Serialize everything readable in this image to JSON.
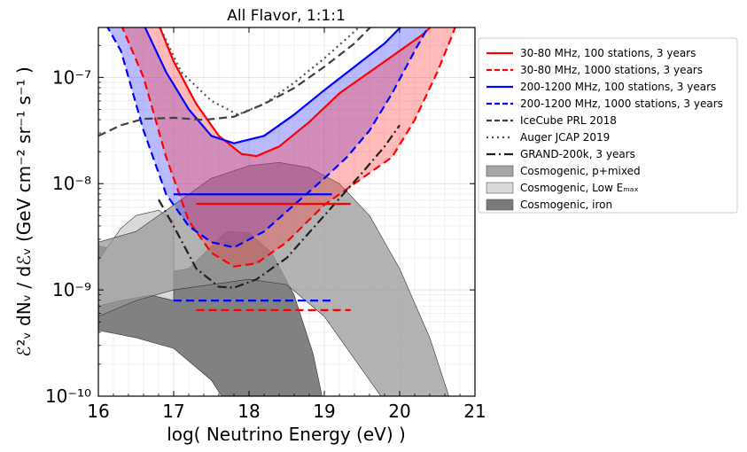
{
  "chart_data": {
    "type": "line",
    "title": "All Flavor, 1:1:1",
    "xlabel": "log( Neutrino Energy (eV) )",
    "ylabel": "ℰ²ᵥ dNᵥ / dℰᵥ (GeV cm⁻² sr⁻¹ s⁻¹ )",
    "xlim": [
      16,
      21
    ],
    "ylim_log10": [
      -10,
      -6.53
    ],
    "x_ticks": [
      16,
      17,
      18,
      19,
      20,
      21
    ],
    "x_tick_labels": [
      "16",
      "17",
      "18",
      "19",
      "20",
      "21"
    ],
    "y_ticks_log10": [
      -10,
      -9,
      -8,
      -7
    ],
    "y_tick_labels": [
      "10⁻¹⁰",
      "10⁻⁹",
      "10⁻⁸",
      "10⁻⁷"
    ],
    "grid": true,
    "legend_position": "outside-right",
    "bands": [
      {
        "name": "Cosmogenic, iron",
        "color": "#7a7a7a",
        "opacity": 0.95,
        "lower": [
          [
            16.0,
            -9.38
          ],
          [
            16.5,
            -9.45
          ],
          [
            17.0,
            -9.55
          ],
          [
            17.5,
            -9.85
          ],
          [
            18.0,
            -10.4
          ],
          [
            18.2,
            -10.6
          ]
        ],
        "upper": [
          [
            16.0,
            -8.58
          ],
          [
            16.4,
            -8.66
          ],
          [
            16.8,
            -8.85
          ],
          [
            17.2,
            -8.8
          ],
          [
            17.7,
            -8.45
          ],
          [
            18.0,
            -8.46
          ],
          [
            18.3,
            -8.65
          ],
          [
            18.6,
            -9.05
          ],
          [
            18.85,
            -9.6
          ],
          [
            19.0,
            -10.1
          ],
          [
            19.05,
            -10.6
          ]
        ]
      },
      {
        "name": "Cosmogenic, Low E_max",
        "color": "#d9d9d9",
        "opacity": 1.0,
        "lower": [
          [
            16.0,
            -9.15
          ],
          [
            16.3,
            -9.1
          ],
          [
            16.7,
            -9.05
          ],
          [
            17.0,
            -9.1
          ]
        ],
        "upper": [
          [
            16.0,
            -8.72
          ],
          [
            16.3,
            -8.42
          ],
          [
            16.5,
            -8.3
          ],
          [
            16.8,
            -8.25
          ],
          [
            17.0,
            -8.35
          ]
        ]
      },
      {
        "name": "Cosmogenic, p+mixed",
        "color": "#9a9a9a",
        "opacity": 0.75,
        "lower": [
          [
            16.0,
            -9.25
          ],
          [
            16.5,
            -9.1
          ],
          [
            17.0,
            -9.0
          ],
          [
            17.5,
            -8.95
          ],
          [
            18.0,
            -8.9
          ],
          [
            18.5,
            -8.95
          ],
          [
            19.0,
            -9.25
          ],
          [
            19.5,
            -9.75
          ],
          [
            20.0,
            -10.25
          ],
          [
            20.5,
            -10.6
          ]
        ],
        "upper": [
          [
            16.0,
            -8.55
          ],
          [
            16.5,
            -8.45
          ],
          [
            17.0,
            -8.2
          ],
          [
            17.5,
            -7.95
          ],
          [
            18.0,
            -7.83
          ],
          [
            18.4,
            -7.8
          ],
          [
            18.8,
            -7.85
          ],
          [
            19.2,
            -8.0
          ],
          [
            19.6,
            -8.3
          ],
          [
            20.0,
            -8.8
          ],
          [
            20.4,
            -9.45
          ],
          [
            20.7,
            -10.1
          ],
          [
            20.85,
            -10.6
          ]
        ]
      }
    ],
    "fills": [
      {
        "name": "200-1200 MHz band",
        "color": "#3a3aff",
        "opacity": 0.35,
        "between": [
          "200-1200 MHz, 100 stations, 3 years",
          "200-1200 MHz, 1000 stations, 3 years"
        ]
      },
      {
        "name": "30-80 MHz band",
        "color": "#ff3a3a",
        "opacity": 0.35,
        "between": [
          "30-80 MHz, 100 stations, 3 years",
          "30-80 MHz, 1000 stations, 3 years"
        ]
      }
    ],
    "series": [
      {
        "name": "30-80 MHz, 100 stations, 3 years",
        "color": "#ff0000",
        "style": "solid",
        "width": 2.2,
        "points": [
          [
            16.8,
            -6.5
          ],
          [
            17.0,
            -6.85
          ],
          [
            17.3,
            -7.25
          ],
          [
            17.6,
            -7.55
          ],
          [
            17.9,
            -7.72
          ],
          [
            18.1,
            -7.74
          ],
          [
            18.4,
            -7.65
          ],
          [
            18.8,
            -7.42
          ],
          [
            19.2,
            -7.15
          ],
          [
            19.6,
            -6.95
          ],
          [
            20.0,
            -6.75
          ],
          [
            20.3,
            -6.6
          ],
          [
            20.45,
            -6.5
          ]
        ]
      },
      {
        "name": "30-80 MHz, 1000 stations, 3 years",
        "color": "#ff0000",
        "style": "dashed",
        "width": 2.2,
        "points": [
          [
            16.3,
            -6.5
          ],
          [
            16.6,
            -7.0
          ],
          [
            16.9,
            -7.75
          ],
          [
            17.2,
            -8.35
          ],
          [
            17.5,
            -8.65
          ],
          [
            17.8,
            -8.78
          ],
          [
            18.1,
            -8.75
          ],
          [
            18.5,
            -8.55
          ],
          [
            19.0,
            -8.2
          ],
          [
            19.5,
            -7.95
          ],
          [
            19.9,
            -7.75
          ],
          [
            20.2,
            -7.4
          ],
          [
            20.5,
            -6.95
          ],
          [
            20.7,
            -6.6
          ],
          [
            20.75,
            -6.5
          ]
        ]
      },
      {
        "name": "200-1200 MHz, 100 stations, 3 years",
        "color": "#0000ff",
        "style": "solid",
        "width": 2.2,
        "points": [
          [
            16.6,
            -6.5
          ],
          [
            16.9,
            -6.95
          ],
          [
            17.2,
            -7.3
          ],
          [
            17.5,
            -7.55
          ],
          [
            17.8,
            -7.62
          ],
          [
            18.2,
            -7.55
          ],
          [
            18.6,
            -7.35
          ],
          [
            19.0,
            -7.12
          ],
          [
            19.4,
            -6.9
          ],
          [
            19.8,
            -6.68
          ],
          [
            20.05,
            -6.5
          ]
        ]
      },
      {
        "name": "200-1200 MHz, 1000 stations, 3 years",
        "color": "#0000ff",
        "style": "dashed",
        "width": 2.2,
        "points": [
          [
            16.1,
            -6.5
          ],
          [
            16.3,
            -6.75
          ],
          [
            16.6,
            -7.5
          ],
          [
            16.9,
            -8.1
          ],
          [
            17.2,
            -8.4
          ],
          [
            17.5,
            -8.55
          ],
          [
            17.8,
            -8.6
          ],
          [
            18.2,
            -8.45
          ],
          [
            18.6,
            -8.2
          ],
          [
            19.0,
            -7.95
          ],
          [
            19.3,
            -7.75
          ],
          [
            19.6,
            -7.5
          ],
          [
            19.9,
            -7.15
          ],
          [
            20.2,
            -6.75
          ],
          [
            20.4,
            -6.5
          ]
        ]
      },
      {
        "name": "IceCube PRL 2018",
        "color": "#404040",
        "style": "dashed",
        "width": 2.2,
        "points": [
          [
            16.0,
            -7.55
          ],
          [
            16.3,
            -7.45
          ],
          [
            16.6,
            -7.39
          ],
          [
            17.0,
            -7.38
          ],
          [
            17.4,
            -7.4
          ],
          [
            17.8,
            -7.37
          ],
          [
            18.2,
            -7.25
          ],
          [
            18.6,
            -7.1
          ],
          [
            19.0,
            -6.9
          ],
          [
            19.4,
            -6.68
          ],
          [
            19.65,
            -6.5
          ]
        ]
      },
      {
        "name": "Auger JCAP 2019",
        "color": "#505050",
        "style": "dotted",
        "width": 2.2,
        "points": [
          [
            16.8,
            -6.5
          ],
          [
            17.1,
            -6.95
          ],
          [
            17.5,
            -7.22
          ],
          [
            17.85,
            -7.35
          ],
          [
            18.2,
            -7.25
          ],
          [
            18.6,
            -7.05
          ],
          [
            19.0,
            -6.82
          ],
          [
            19.35,
            -6.6
          ],
          [
            19.5,
            -6.5
          ]
        ]
      },
      {
        "name": "GRAND-200k, 3 years",
        "color": "#202020",
        "style": "dashdot",
        "width": 2.2,
        "points": [
          [
            16.8,
            -8.15
          ],
          [
            17.0,
            -8.4
          ],
          [
            17.3,
            -8.8
          ],
          [
            17.6,
            -8.97
          ],
          [
            17.8,
            -8.98
          ],
          [
            18.1,
            -8.9
          ],
          [
            18.5,
            -8.7
          ],
          [
            19.0,
            -8.3
          ],
          [
            19.5,
            -7.9
          ],
          [
            19.8,
            -7.65
          ],
          [
            20.0,
            -7.45
          ]
        ]
      }
    ],
    "hlines": [
      {
        "name": "200-1200 MHz, 100 stations (average)",
        "color": "#0000ff",
        "style": "solid",
        "x": [
          17.0,
          19.1
        ],
        "y_log10": -8.1
      },
      {
        "name": "30-80 MHz, 100 stations (average)",
        "color": "#ff0000",
        "style": "solid",
        "x": [
          17.3,
          19.35
        ],
        "y_log10": -8.19
      },
      {
        "name": "200-1200 MHz, 1000 stations (average)",
        "color": "#0000ff",
        "style": "dashed",
        "x": [
          17.0,
          19.1
        ],
        "y_log10": -9.1
      },
      {
        "name": "30-80 MHz, 1000 stations (average)",
        "color": "#ff0000",
        "style": "dashed",
        "x": [
          17.3,
          19.35
        ],
        "y_log10": -9.19
      }
    ],
    "legend": [
      {
        "label": "30-80 MHz, 100 stations, 3 years",
        "kind": "line",
        "color": "#ff0000",
        "style": "solid"
      },
      {
        "label": "30-80 MHz, 1000 stations, 3 years",
        "kind": "line",
        "color": "#ff0000",
        "style": "dashed"
      },
      {
        "label": "200-1200 MHz, 100 stations, 3 years",
        "kind": "line",
        "color": "#0000ff",
        "style": "solid"
      },
      {
        "label": "200-1200 MHz, 1000 stations, 3 years",
        "kind": "line",
        "color": "#0000ff",
        "style": "dashed"
      },
      {
        "label": "IceCube PRL 2018",
        "kind": "line",
        "color": "#404040",
        "style": "dashed"
      },
      {
        "label": "Auger JCAP 2019",
        "kind": "line",
        "color": "#505050",
        "style": "dotted"
      },
      {
        "label": "GRAND-200k, 3 years",
        "kind": "line",
        "color": "#202020",
        "style": "dashdot"
      },
      {
        "label": "Cosmogenic, p+mixed",
        "kind": "patch",
        "color": "#a6a6a6"
      },
      {
        "label": "Cosmogenic, Low Eₘₐₓ",
        "kind": "patch",
        "color": "#d9d9d9"
      },
      {
        "label": "Cosmogenic, iron",
        "kind": "patch",
        "color": "#7a7a7a"
      }
    ]
  }
}
